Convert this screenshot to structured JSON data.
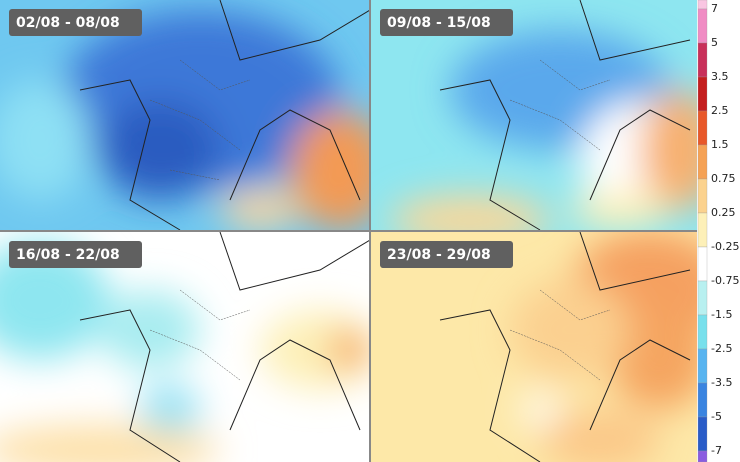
{
  "panels": [
    {
      "label": "02/08 - 08/08"
    },
    {
      "label": "09/08 - 15/08"
    },
    {
      "label": "16/08 - 22/08"
    },
    {
      "label": "23/08 - 29/08"
    }
  ],
  "legend": {
    "labels": [
      "7",
      "5",
      "3.5",
      "2.5",
      "1.5",
      "0.75",
      "0.25",
      "-0.25",
      "-0.75",
      "-1.5",
      "-2.5",
      "-3.5",
      "-5",
      "-7"
    ],
    "colors": [
      "#f9c6e2",
      "#f08cc4",
      "#c8305a",
      "#c41e1e",
      "#e8582a",
      "#f5a255",
      "#fbd28e",
      "#fdf0b8",
      "#ffffff",
      "#b8f0f0",
      "#78e0ec",
      "#58b4f0",
      "#3a84e0",
      "#2a5cc8",
      "#8a5ce0"
    ]
  }
}
